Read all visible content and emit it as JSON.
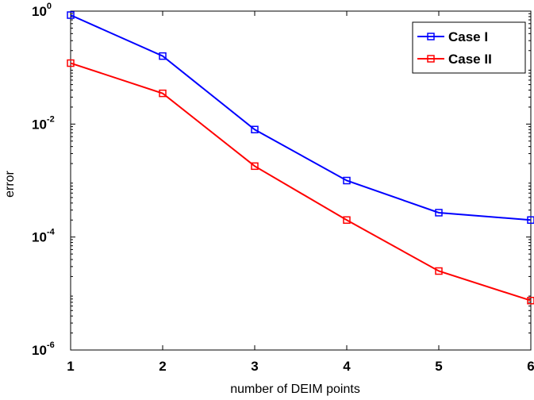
{
  "chart_data": {
    "type": "line",
    "title": "",
    "xlabel": "number of DEIM points",
    "ylabel": "error",
    "x": [
      1,
      2,
      3,
      4,
      5,
      6
    ],
    "xlim": [
      1,
      6
    ],
    "ylim": [
      1e-06,
      1
    ],
    "yscale": "log",
    "xticks": [
      "1",
      "2",
      "3",
      "4",
      "5",
      "6"
    ],
    "yticks": [
      {
        "value": 1,
        "base": "10",
        "exp": "0"
      },
      {
        "value": 0.01,
        "base": "10",
        "exp": "-2"
      },
      {
        "value": 0.0001,
        "base": "10",
        "exp": "-4"
      },
      {
        "value": 1e-06,
        "base": "10",
        "exp": "-6"
      }
    ],
    "grid": false,
    "legend_position": "top-right",
    "series": [
      {
        "name": "Case I",
        "color": "#0000ff",
        "marker": "square",
        "values": [
          0.85,
          0.16,
          0.008,
          0.001,
          0.00027,
          0.0002
        ]
      },
      {
        "name": "Case II",
        "color": "#ff0000",
        "marker": "square",
        "values": [
          0.12,
          0.035,
          0.0018,
          0.0002,
          2.5e-05,
          7.5e-06
        ]
      }
    ]
  }
}
